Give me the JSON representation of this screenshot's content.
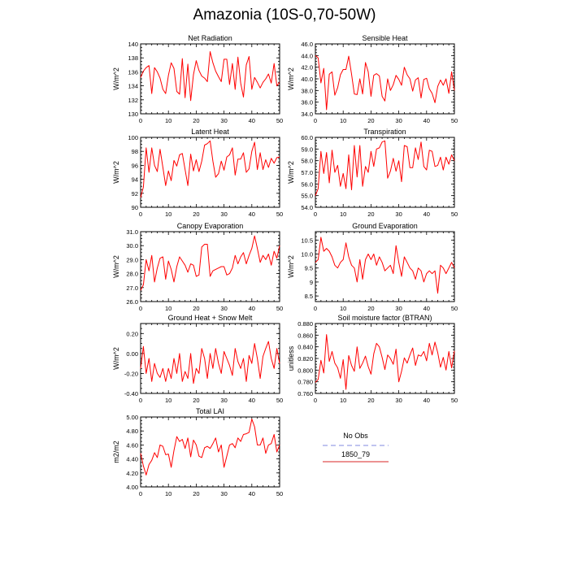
{
  "page": {
    "title": "Amazonia (10S-0,70-50W)"
  },
  "legend": {
    "entries": [
      {
        "label": "No Obs",
        "color": "#9aa0e8",
        "dash": true
      },
      {
        "label": "1850_79",
        "color": "#e05050",
        "dash": false
      }
    ]
  },
  "colors": {
    "series": "#ff0000",
    "axis": "#000000"
  },
  "chart_data": [
    {
      "type": "line",
      "title": "Net Radiation",
      "ylabel": "W/m^2",
      "xlim": [
        0,
        50
      ],
      "ylim": [
        130,
        140
      ],
      "xticks": [
        0,
        10,
        20,
        30,
        40,
        50
      ],
      "yticks": [
        130,
        132,
        134,
        136,
        138,
        140
      ],
      "ytick_labels": [
        "130",
        "132",
        "134",
        "136",
        "138",
        "140"
      ],
      "series": [
        {
          "values": [
            135.2,
            136.1,
            136.6,
            136.9,
            132.9,
            136.6,
            136.0,
            135.1,
            133.5,
            132.9,
            135.5,
            137.3,
            136.5,
            133.2,
            132.8,
            137.9,
            132.3,
            137.1,
            131.9,
            135.6,
            137.6,
            136.2,
            135.4,
            135.1,
            134.6,
            138.9,
            137.3,
            136.1,
            135.3,
            134.6,
            137.8,
            137.8,
            134.2,
            137.2,
            133.5,
            138.1,
            134.4,
            132.4,
            137.0,
            138.2,
            133.5,
            135.2,
            134.5,
            133.7,
            134.5,
            135.0,
            135.7,
            134.4,
            137.2,
            134.0,
            134.5
          ]
        }
      ]
    },
    {
      "type": "line",
      "title": "Sensible Heat",
      "ylabel": "W/m^2",
      "xlim": [
        0,
        50
      ],
      "ylim": [
        34,
        46
      ],
      "xticks": [
        0,
        10,
        20,
        30,
        40,
        50
      ],
      "yticks": [
        34,
        36,
        38,
        40,
        42,
        44,
        46
      ],
      "ytick_labels": [
        "34.0",
        "36.0",
        "38.0",
        "40.0",
        "42.0",
        "44.0",
        "46.0"
      ],
      "series": [
        {
          "values": [
            44.0,
            43.6,
            39.3,
            41.8,
            34.7,
            40.8,
            41.2,
            37.2,
            38.5,
            40.7,
            41.6,
            41.6,
            43.9,
            40.8,
            37.4,
            37.3,
            40.0,
            37.4,
            42.8,
            41.2,
            37.0,
            40.6,
            40.9,
            40.5,
            37.0,
            36.2,
            40.0,
            38.0,
            39.0,
            40.6,
            39.9,
            38.9,
            42.0,
            40.7,
            40.0,
            37.9,
            39.8,
            40.2,
            36.7,
            39.9,
            40.1,
            38.3,
            37.5,
            35.9,
            38.7,
            39.8,
            38.9,
            40.0,
            37.5,
            41.2,
            38.0
          ]
        }
      ]
    },
    {
      "type": "line",
      "title": "Latent Heat",
      "ylabel": "W/m^2",
      "xlim": [
        0,
        50
      ],
      "ylim": [
        90,
        100
      ],
      "xticks": [
        0,
        10,
        20,
        30,
        40,
        50
      ],
      "yticks": [
        90,
        92,
        94,
        96,
        98,
        100
      ],
      "ytick_labels": [
        "90",
        "92",
        "94",
        "96",
        "98",
        "100"
      ],
      "series": [
        {
          "values": [
            91.4,
            92.9,
            98.5,
            95.0,
            98.5,
            96.0,
            95.1,
            98.3,
            95.7,
            93.1,
            95.2,
            93.8,
            96.7,
            95.9,
            97.5,
            97.7,
            95.4,
            93.1,
            97.6,
            95.2,
            96.8,
            95.1,
            96.6,
            98.9,
            99.1,
            99.5,
            96.6,
            94.3,
            94.8,
            96.6,
            95.3,
            97.2,
            97.5,
            98.5,
            94.6,
            96.9,
            96.9,
            97.8,
            95.0,
            95.5,
            98.0,
            99.3,
            95.4,
            97.8,
            95.4,
            96.8,
            95.7,
            97.0,
            96.3,
            97.1,
            97.2
          ]
        }
      ]
    },
    {
      "type": "line",
      "title": "Transpiration",
      "ylabel": "W/m^2",
      "xlim": [
        0,
        50
      ],
      "ylim": [
        54,
        60
      ],
      "xticks": [
        0,
        10,
        20,
        30,
        40,
        50
      ],
      "yticks": [
        54,
        55,
        56,
        57,
        58,
        59,
        60
      ],
      "ytick_labels": [
        "54.0",
        "55.0",
        "56.0",
        "57.0",
        "58.0",
        "59.0",
        "60.0"
      ],
      "series": [
        {
          "values": [
            55.0,
            55.6,
            58.8,
            56.9,
            58.7,
            56.1,
            58.9,
            57.0,
            57.6,
            55.8,
            56.9,
            55.6,
            58.5,
            55.5,
            59.3,
            56.6,
            59.3,
            55.8,
            57.5,
            57.0,
            58.8,
            57.5,
            59.0,
            59.1,
            59.6,
            59.7,
            56.5,
            57.1,
            58.2,
            57.1,
            58.0,
            56.2,
            59.3,
            59.2,
            57.4,
            57.4,
            59.1,
            58.1,
            59.6,
            57.5,
            57.2,
            58.9,
            58.8,
            57.5,
            57.6,
            58.3,
            57.2,
            58.3,
            57.7,
            58.5,
            58.0
          ]
        }
      ]
    },
    {
      "type": "line",
      "title": "Canopy Evaporation",
      "ylabel": "W/m^2",
      "xlim": [
        0,
        50
      ],
      "ylim": [
        26,
        31
      ],
      "xticks": [
        0,
        10,
        20,
        30,
        40,
        50
      ],
      "yticks": [
        26,
        27,
        28,
        29,
        30,
        31
      ],
      "ytick_labels": [
        "26.0",
        "27.0",
        "28.0",
        "29.0",
        "30.0",
        "31.0"
      ],
      "series": [
        {
          "values": [
            26.8,
            27.2,
            29.0,
            28.2,
            29.3,
            27.4,
            28.4,
            29.1,
            29.2,
            27.6,
            28.9,
            28.3,
            27.4,
            28.5,
            29.2,
            28.9,
            28.6,
            28.1,
            28.7,
            28.6,
            27.8,
            27.9,
            29.9,
            30.1,
            30.1,
            27.8,
            28.2,
            28.3,
            28.4,
            28.5,
            28.5,
            27.9,
            28.0,
            28.4,
            29.3,
            28.7,
            29.2,
            29.5,
            28.7,
            29.3,
            29.8,
            30.7,
            29.8,
            28.8,
            29.3,
            29.0,
            29.4,
            28.6,
            29.6,
            29.1,
            30.0
          ]
        }
      ]
    },
    {
      "type": "line",
      "title": "Ground Evaporation",
      "ylabel": "W/m^2",
      "xlim": [
        0,
        50
      ],
      "ylim": [
        8.3,
        10.8
      ],
      "xticks": [
        0,
        10,
        20,
        30,
        40,
        50
      ],
      "yticks": [
        8.5,
        9.0,
        9.5,
        10.0,
        10.5
      ],
      "ytick_labels": [
        "8.5",
        "9",
        "9.5",
        "10.0",
        "10.5"
      ],
      "series": [
        {
          "values": [
            9.7,
            9.8,
            10.6,
            10.1,
            10.2,
            10.1,
            9.9,
            9.6,
            9.5,
            9.7,
            9.8,
            10.4,
            9.9,
            9.6,
            9.5,
            9.0,
            9.8,
            9.1,
            9.8,
            10.0,
            9.8,
            10.0,
            9.6,
            9.9,
            9.7,
            9.4,
            9.5,
            9.6,
            9.3,
            10.3,
            9.7,
            9.2,
            9.9,
            9.7,
            9.5,
            9.4,
            9.1,
            9.5,
            9.4,
            9.0,
            9.3,
            9.4,
            9.3,
            9.4,
            8.6,
            9.6,
            9.5,
            9.3,
            9.5,
            9.7,
            9.5
          ]
        }
      ]
    },
    {
      "type": "line",
      "title": "Ground Heat + Snow Melt",
      "ylabel": "W/m^2",
      "xlim": [
        0,
        50
      ],
      "ylim": [
        -0.4,
        0.3
      ],
      "xticks": [
        0,
        10,
        20,
        30,
        40,
        50
      ],
      "yticks": [
        -0.4,
        -0.2,
        0.0,
        0.2
      ],
      "ytick_labels": [
        "-0.40",
        "-0.20",
        "0.00",
        "0.20"
      ],
      "series": [
        {
          "values": [
            -0.15,
            0.07,
            -0.2,
            -0.05,
            -0.28,
            -0.1,
            -0.2,
            -0.24,
            -0.15,
            -0.28,
            -0.15,
            -0.25,
            -0.05,
            -0.2,
            0.0,
            -0.28,
            -0.18,
            -0.25,
            0.0,
            -0.3,
            -0.15,
            -0.2,
            0.05,
            -0.05,
            -0.25,
            0.0,
            -0.15,
            0.05,
            -0.1,
            -0.2,
            0.02,
            -0.05,
            -0.12,
            -0.22,
            0.05,
            -0.08,
            -0.15,
            -0.05,
            -0.28,
            -0.02,
            -0.1,
            0.1,
            -0.05,
            -0.25,
            -0.03,
            0.05,
            0.12,
            -0.05,
            -0.15,
            0.05,
            -0.1
          ]
        }
      ]
    },
    {
      "type": "line",
      "title": "Soil moisture factor (BTRAN)",
      "ylabel": "unitless",
      "xlim": [
        0,
        50
      ],
      "ylim": [
        0.76,
        0.88
      ],
      "xticks": [
        0,
        10,
        20,
        30,
        40,
        50
      ],
      "yticks": [
        0.76,
        0.78,
        0.8,
        0.82,
        0.84,
        0.86,
        0.88
      ],
      "ytick_labels": [
        "0.760",
        "0.780",
        "0.800",
        "0.820",
        "0.840",
        "0.860",
        "0.880"
      ],
      "series": [
        {
          "values": [
            0.779,
            0.784,
            0.817,
            0.795,
            0.861,
            0.815,
            0.832,
            0.812,
            0.804,
            0.786,
            0.818,
            0.767,
            0.825,
            0.808,
            0.798,
            0.84,
            0.803,
            0.812,
            0.824,
            0.806,
            0.793,
            0.828,
            0.846,
            0.84,
            0.822,
            0.801,
            0.826,
            0.82,
            0.81,
            0.836,
            0.78,
            0.798,
            0.821,
            0.812,
            0.826,
            0.838,
            0.808,
            0.826,
            0.824,
            0.832,
            0.816,
            0.846,
            0.826,
            0.848,
            0.83,
            0.805,
            0.822,
            0.8,
            0.832,
            0.804,
            0.833
          ]
        }
      ]
    },
    {
      "type": "line",
      "title": "Total LAI",
      "ylabel": "m2/m2",
      "xlim": [
        0,
        50
      ],
      "ylim": [
        4.0,
        5.0
      ],
      "xticks": [
        0,
        10,
        20,
        30,
        40,
        50
      ],
      "yticks": [
        4.0,
        4.2,
        4.4,
        4.6,
        4.8,
        5.0
      ],
      "ytick_labels": [
        "4.00",
        "4.20",
        "4.40",
        "4.60",
        "4.80",
        "5.00"
      ],
      "series": [
        {
          "values": [
            4.48,
            4.3,
            4.17,
            4.32,
            4.38,
            4.49,
            4.42,
            4.6,
            4.58,
            4.46,
            4.47,
            4.28,
            4.52,
            4.72,
            4.65,
            4.68,
            4.55,
            4.7,
            4.43,
            4.67,
            4.6,
            4.44,
            4.42,
            4.56,
            4.58,
            4.55,
            4.62,
            4.7,
            4.5,
            4.6,
            4.28,
            4.44,
            4.6,
            4.62,
            4.56,
            4.7,
            4.65,
            4.75,
            4.76,
            4.78,
            4.97,
            4.86,
            4.6,
            4.6,
            4.7,
            4.48,
            4.6,
            4.62,
            4.75,
            4.5,
            4.6
          ]
        }
      ]
    }
  ]
}
